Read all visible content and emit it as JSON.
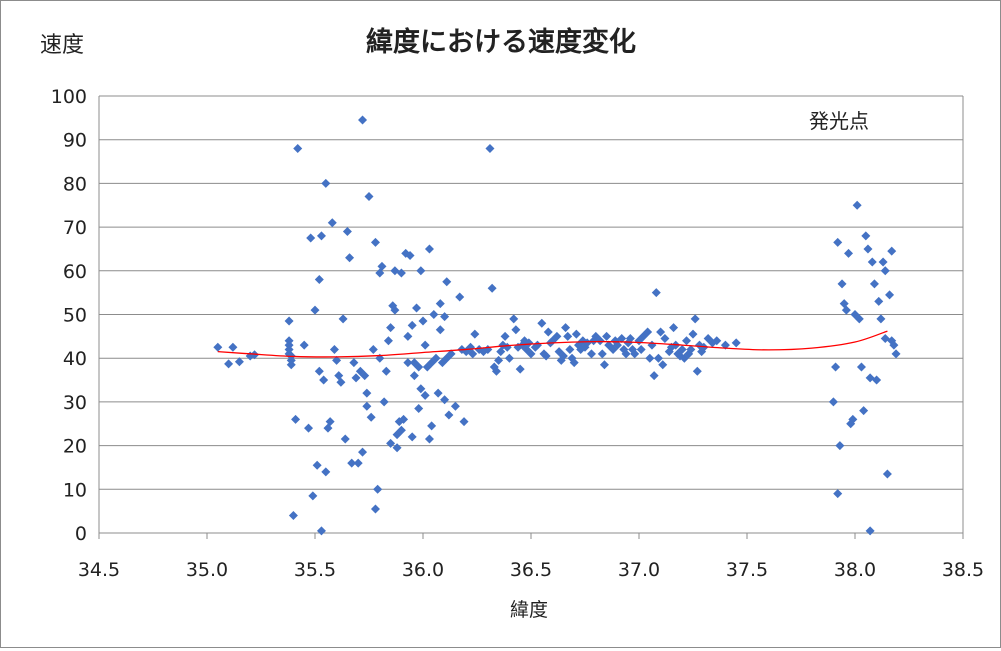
{
  "chart_data": {
    "type": "scatter",
    "title": "緯度における速度変化",
    "xlabel": "緯度",
    "ylabel": "速度",
    "annotation": "発光点",
    "xlim": [
      34.5,
      38.5
    ],
    "ylim": [
      0,
      100
    ],
    "xticks": [
      "34.5",
      "35.0",
      "35.5",
      "36.0",
      "36.5",
      "37.0",
      "37.5",
      "38.0",
      "38.5"
    ],
    "yticks": [
      "0",
      "10",
      "20",
      "30",
      "40",
      "50",
      "60",
      "70",
      "80",
      "90",
      "100"
    ],
    "grid": "horizontal",
    "marker_color": "#4472c4",
    "trend_color": "#ff0000",
    "series": [
      {
        "points": [
          [
            35.05,
            42.5
          ],
          [
            35.1,
            38.7
          ],
          [
            35.12,
            42.5
          ],
          [
            35.15,
            39.2
          ],
          [
            35.2,
            40.5
          ],
          [
            35.22,
            40.8
          ],
          [
            35.38,
            48.5
          ],
          [
            35.38,
            44
          ],
          [
            35.38,
            43
          ],
          [
            35.38,
            42
          ],
          [
            35.38,
            41
          ],
          [
            35.39,
            40.5
          ],
          [
            35.39,
            39.5
          ],
          [
            35.39,
            38.5
          ],
          [
            35.4,
            4
          ],
          [
            35.41,
            26
          ],
          [
            35.42,
            88
          ],
          [
            35.45,
            43
          ],
          [
            35.47,
            24
          ],
          [
            35.48,
            67.5
          ],
          [
            35.49,
            8.5
          ],
          [
            35.5,
            51
          ],
          [
            35.51,
            15.5
          ],
          [
            35.52,
            58
          ],
          [
            35.52,
            37
          ],
          [
            35.53,
            0.5
          ],
          [
            35.53,
            68
          ],
          [
            35.54,
            35
          ],
          [
            35.55,
            80
          ],
          [
            35.55,
            14
          ],
          [
            35.56,
            24
          ],
          [
            35.57,
            25.5
          ],
          [
            35.58,
            71
          ],
          [
            35.59,
            42
          ],
          [
            35.6,
            39.5
          ],
          [
            35.61,
            36
          ],
          [
            35.62,
            34.5
          ],
          [
            35.63,
            49
          ],
          [
            35.64,
            21.5
          ],
          [
            35.65,
            69
          ],
          [
            35.66,
            63
          ],
          [
            35.67,
            16
          ],
          [
            35.68,
            39
          ],
          [
            35.69,
            35.5
          ],
          [
            35.7,
            16
          ],
          [
            35.71,
            37
          ],
          [
            35.72,
            94.5
          ],
          [
            35.72,
            18.5
          ],
          [
            35.73,
            36
          ],
          [
            35.74,
            32
          ],
          [
            35.74,
            29
          ],
          [
            35.75,
            77
          ],
          [
            35.76,
            26.5
          ],
          [
            35.77,
            42
          ],
          [
            35.78,
            66.5
          ],
          [
            35.78,
            5.5
          ],
          [
            35.79,
            10
          ],
          [
            35.8,
            59.5
          ],
          [
            35.8,
            40
          ],
          [
            35.81,
            61
          ],
          [
            35.82,
            30
          ],
          [
            35.83,
            37
          ],
          [
            35.84,
            44
          ],
          [
            35.85,
            47
          ],
          [
            35.85,
            20.5
          ],
          [
            35.86,
            52
          ],
          [
            35.87,
            60
          ],
          [
            35.87,
            51
          ],
          [
            35.88,
            22.5
          ],
          [
            35.88,
            19.5
          ],
          [
            35.89,
            25.5
          ],
          [
            35.9,
            59.5
          ],
          [
            35.9,
            23.5
          ],
          [
            35.91,
            26
          ],
          [
            35.92,
            64
          ],
          [
            35.93,
            45
          ],
          [
            35.93,
            39
          ],
          [
            35.94,
            63.5
          ],
          [
            35.95,
            47.5
          ],
          [
            35.95,
            22
          ],
          [
            35.96,
            39
          ],
          [
            35.96,
            36
          ],
          [
            35.97,
            51.5
          ],
          [
            35.98,
            38
          ],
          [
            35.98,
            28.5
          ],
          [
            35.99,
            60
          ],
          [
            35.99,
            33
          ],
          [
            36.0,
            48.5
          ],
          [
            36.01,
            43
          ],
          [
            36.01,
            31.5
          ],
          [
            36.02,
            38
          ],
          [
            36.03,
            65
          ],
          [
            36.03,
            21.5
          ],
          [
            36.04,
            39
          ],
          [
            36.04,
            24.5
          ],
          [
            36.05,
            50
          ],
          [
            36.06,
            40
          ],
          [
            36.07,
            32
          ],
          [
            36.08,
            52.5
          ],
          [
            36.08,
            46.5
          ],
          [
            36.09,
            39
          ],
          [
            36.1,
            30.5
          ],
          [
            36.1,
            49.5
          ],
          [
            36.11,
            57.5
          ],
          [
            36.11,
            40
          ],
          [
            36.12,
            27
          ],
          [
            36.13,
            41
          ],
          [
            36.15,
            29
          ],
          [
            36.17,
            54
          ],
          [
            36.18,
            42
          ],
          [
            36.19,
            25.5
          ],
          [
            36.2,
            41.5
          ],
          [
            36.22,
            42.5
          ],
          [
            36.23,
            41
          ],
          [
            36.24,
            45.5
          ],
          [
            36.26,
            42
          ],
          [
            36.28,
            41.5
          ],
          [
            36.3,
            42
          ],
          [
            36.31,
            88
          ],
          [
            36.32,
            56
          ],
          [
            36.33,
            38
          ],
          [
            36.34,
            37
          ],
          [
            36.35,
            39.5
          ],
          [
            36.36,
            41.5
          ],
          [
            36.37,
            43
          ],
          [
            36.38,
            45
          ],
          [
            36.39,
            42.5
          ],
          [
            36.4,
            40
          ],
          [
            36.42,
            49
          ],
          [
            36.43,
            46.5
          ],
          [
            36.44,
            42.5
          ],
          [
            36.45,
            37.5
          ],
          [
            36.46,
            43
          ],
          [
            36.47,
            44
          ],
          [
            36.48,
            42
          ],
          [
            36.49,
            43.5
          ],
          [
            36.5,
            41
          ],
          [
            36.52,
            42.5
          ],
          [
            36.53,
            43
          ],
          [
            36.55,
            48
          ],
          [
            36.56,
            41
          ],
          [
            36.57,
            40.5
          ],
          [
            36.58,
            46
          ],
          [
            36.59,
            43.5
          ],
          [
            36.6,
            44
          ],
          [
            36.62,
            45
          ],
          [
            36.63,
            41.5
          ],
          [
            36.64,
            39.5
          ],
          [
            36.65,
            40.5
          ],
          [
            36.66,
            47
          ],
          [
            36.67,
            45
          ],
          [
            36.68,
            42
          ],
          [
            36.69,
            40
          ],
          [
            36.7,
            39
          ],
          [
            36.71,
            45.5
          ],
          [
            36.72,
            43
          ],
          [
            36.73,
            42
          ],
          [
            36.74,
            44
          ],
          [
            36.75,
            42.5
          ],
          [
            36.76,
            43.5
          ],
          [
            36.78,
            41
          ],
          [
            36.79,
            44
          ],
          [
            36.8,
            45
          ],
          [
            36.82,
            44
          ],
          [
            36.83,
            41
          ],
          [
            36.84,
            38.5
          ],
          [
            36.85,
            45
          ],
          [
            36.86,
            43
          ],
          [
            36.88,
            42
          ],
          [
            36.89,
            44
          ],
          [
            36.9,
            43
          ],
          [
            36.92,
            44.5
          ],
          [
            36.93,
            42
          ],
          [
            36.94,
            41
          ],
          [
            36.95,
            43.5
          ],
          [
            36.96,
            44.5
          ],
          [
            36.97,
            42
          ],
          [
            36.98,
            41
          ],
          [
            37.0,
            44
          ],
          [
            37.01,
            42
          ],
          [
            37.02,
            45
          ],
          [
            37.04,
            46
          ],
          [
            37.05,
            40
          ],
          [
            37.06,
            43
          ],
          [
            37.07,
            36
          ],
          [
            37.08,
            55
          ],
          [
            37.09,
            40
          ],
          [
            37.1,
            46
          ],
          [
            37.11,
            38.5
          ],
          [
            37.12,
            44.5
          ],
          [
            37.14,
            41.5
          ],
          [
            37.15,
            42.5
          ],
          [
            37.16,
            47
          ],
          [
            37.17,
            43
          ],
          [
            37.18,
            41
          ],
          [
            37.19,
            40.5
          ],
          [
            37.2,
            42
          ],
          [
            37.21,
            40
          ],
          [
            37.22,
            44
          ],
          [
            37.23,
            41
          ],
          [
            37.24,
            42
          ],
          [
            37.25,
            45.5
          ],
          [
            37.26,
            49
          ],
          [
            37.27,
            37
          ],
          [
            37.28,
            43
          ],
          [
            37.29,
            41.5
          ],
          [
            37.3,
            42.5
          ],
          [
            37.32,
            44.5
          ],
          [
            37.34,
            43.5
          ],
          [
            37.36,
            44
          ],
          [
            37.4,
            43
          ],
          [
            37.45,
            43.5
          ],
          [
            37.9,
            30
          ],
          [
            37.91,
            38
          ],
          [
            37.92,
            9
          ],
          [
            37.92,
            66.5
          ],
          [
            37.93,
            20
          ],
          [
            37.94,
            57
          ],
          [
            37.95,
            52.5
          ],
          [
            37.96,
            51
          ],
          [
            37.97,
            64
          ],
          [
            37.98,
            25
          ],
          [
            37.99,
            26
          ],
          [
            38.0,
            50
          ],
          [
            38.01,
            75
          ],
          [
            38.02,
            49
          ],
          [
            38.03,
            38
          ],
          [
            38.04,
            28
          ],
          [
            38.05,
            68
          ],
          [
            38.06,
            65
          ],
          [
            38.07,
            35.5
          ],
          [
            38.07,
            0.5
          ],
          [
            38.08,
            62
          ],
          [
            38.09,
            57
          ],
          [
            38.1,
            35
          ],
          [
            38.11,
            53
          ],
          [
            38.12,
            49
          ],
          [
            38.13,
            62
          ],
          [
            38.14,
            44.5
          ],
          [
            38.14,
            60
          ],
          [
            38.15,
            13.5
          ],
          [
            38.16,
            54.5
          ],
          [
            38.17,
            44
          ],
          [
            38.18,
            43
          ],
          [
            38.19,
            41
          ],
          [
            38.17,
            64.5
          ]
        ]
      }
    ],
    "trendline": [
      [
        35.05,
        41.5
      ],
      [
        35.2,
        41.0
      ],
      [
        35.4,
        40.4
      ],
      [
        35.6,
        40.3
      ],
      [
        35.8,
        40.6
      ],
      [
        36.0,
        41.3
      ],
      [
        36.2,
        42.0
      ],
      [
        36.4,
        42.9
      ],
      [
        36.6,
        43.5
      ],
      [
        36.8,
        43.8
      ],
      [
        37.0,
        43.6
      ],
      [
        37.2,
        43.0
      ],
      [
        37.4,
        42.3
      ],
      [
        37.6,
        41.9
      ],
      [
        37.8,
        42.3
      ],
      [
        38.0,
        43.7
      ],
      [
        38.15,
        46.2
      ]
    ]
  }
}
